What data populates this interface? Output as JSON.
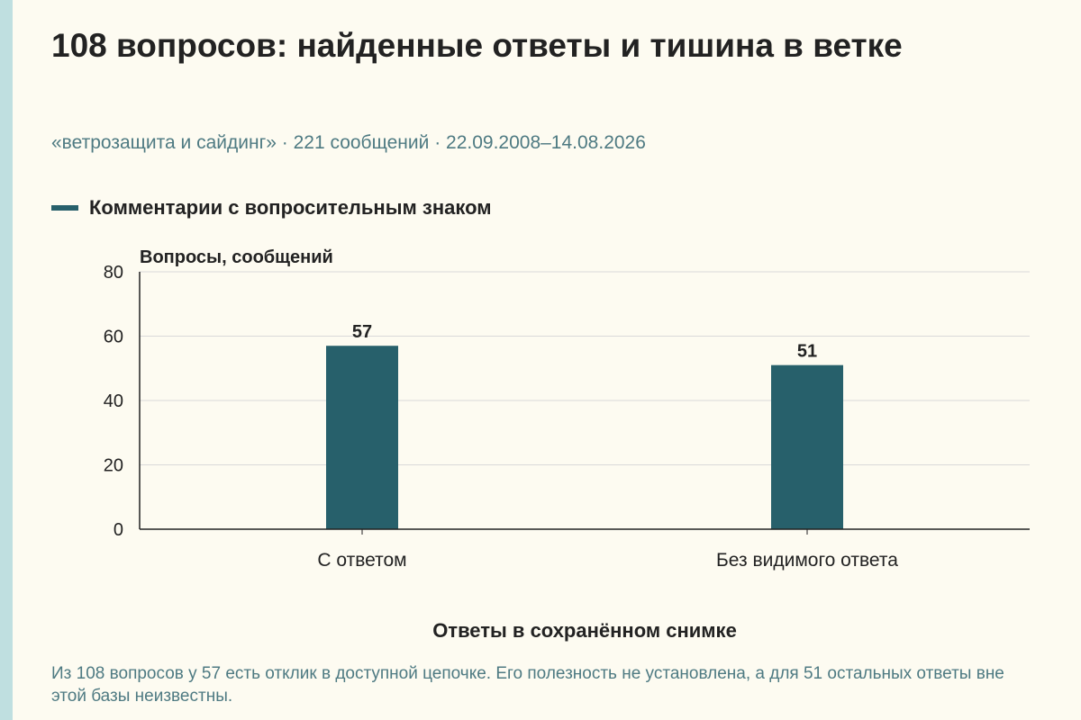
{
  "title": "108 вопросов: найденные ответы и тишина в ветке",
  "subtitle": "«ветрозащита и сайдинг» · 221 сообщений · 22.09.2008–14.08.2026",
  "note": "Из 108 вопросов у 57 есть отклик в доступной цепочке. Его полезность не установлена, а для 51 остальных ответы вне этой базы неизвестны.",
  "colors": {
    "bar": "#27606b",
    "grid": "#d9d9d9",
    "axis": "#222222",
    "text": "#222222",
    "muted": "#4e7a82"
  },
  "chart_data": {
    "type": "bar",
    "categories": [
      "С ответом",
      "Без видимого ответа"
    ],
    "series": [
      {
        "name": "Комментарии с вопросительным знаком",
        "values": [
          57,
          51
        ]
      }
    ],
    "data_labels": [
      "57",
      "51"
    ],
    "xlabel": "Ответы в сохранённом снимке",
    "ylabel": "Вопросы, сообщений",
    "ylim": [
      0,
      80
    ],
    "yticks": [
      0,
      20,
      40,
      60,
      80
    ],
    "grid": true,
    "legend": "top-left"
  }
}
